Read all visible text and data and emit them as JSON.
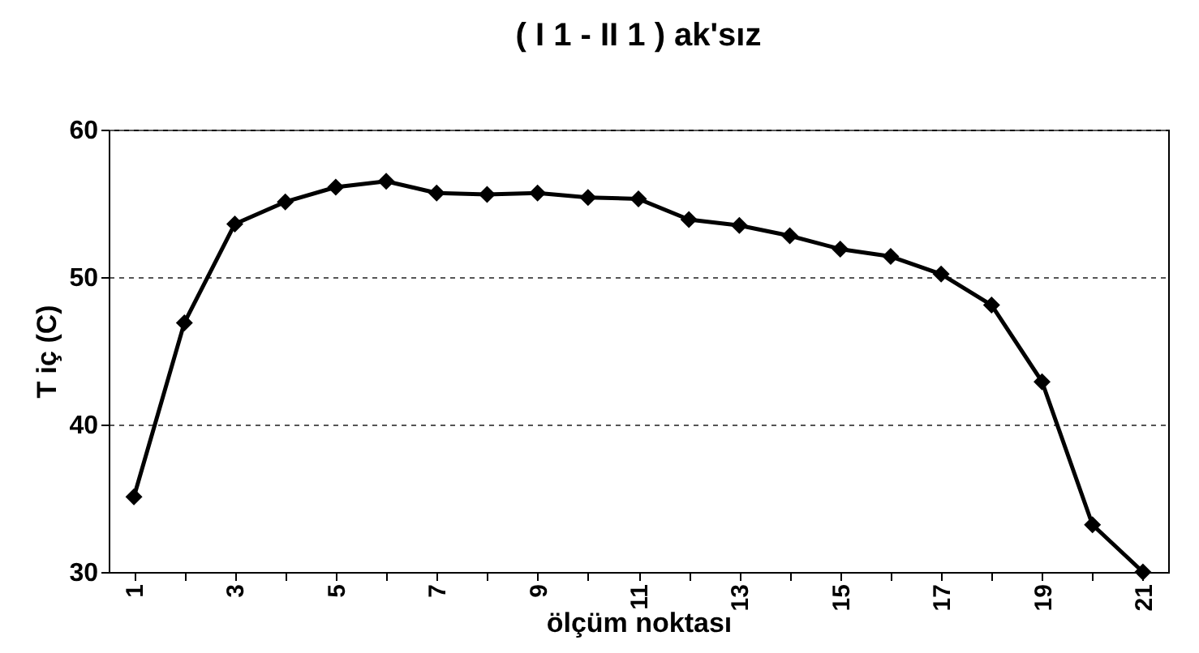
{
  "chart_data": {
    "type": "line",
    "title": "( I 1 - II 1 ) ak'sız",
    "xlabel": "ölçüm noktası",
    "ylabel": "T iç (C)",
    "categories": [
      "1",
      null,
      "3",
      null,
      "5",
      null,
      "7",
      null,
      "9",
      null,
      "11",
      null,
      "13",
      null,
      "15",
      null,
      "17",
      null,
      "19",
      null,
      "21"
    ],
    "series": [
      {
        "color": "#000000",
        "values": [
          35.1,
          46.9,
          53.6,
          55.1,
          56.1,
          56.5,
          55.7,
          55.6,
          55.7,
          55.4,
          55.3,
          53.9,
          53.5,
          52.8,
          51.9,
          51.4,
          50.2,
          48.1,
          42.9,
          33.2,
          30
        ]
      }
    ],
    "ylim": [
      30,
      60
    ],
    "yticks": [
      30,
      40,
      50,
      60
    ],
    "grid": "y",
    "marker": "diamond",
    "line_style": "solid"
  }
}
